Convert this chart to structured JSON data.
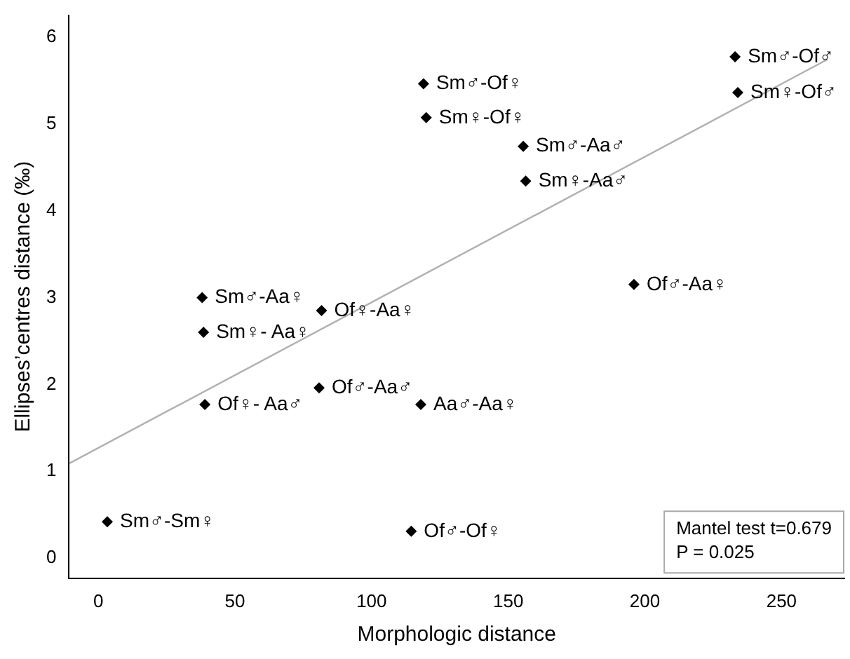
{
  "chart_data": {
    "type": "scatter",
    "xlabel": "Morphologic distance",
    "ylabel": "Ellipses’centres distance (‰)",
    "xlim": [
      -10.7,
      273
    ],
    "ylim": [
      -0.23,
      6.25
    ],
    "xticks": [
      0,
      50,
      100,
      150,
      200,
      250
    ],
    "yticks": [
      0,
      1,
      2,
      3,
      4,
      5,
      6
    ],
    "grid": false,
    "legend": false,
    "marker": "diamond",
    "series": [
      {
        "type": "scatter",
        "color": "#000000",
        "x": [
          233,
          234,
          119,
          120,
          155.5,
          156.4,
          196,
          38,
          81.7,
          38.5,
          80.8,
          39,
          118,
          3.3,
          114.5
        ],
        "values": [
          5.77,
          5.36,
          5.46,
          5.07,
          4.74,
          4.34,
          3.15,
          3.0,
          2.85,
          2.6,
          1.96,
          1.77,
          1.77,
          0.42,
          0.31
        ]
      },
      {
        "type": "line",
        "color": "#b0b0b0",
        "x": [
          -10.7,
          266.8
        ],
        "values": [
          1.09,
          5.74
        ],
        "marker": "none"
      }
    ],
    "annotations": [
      {
        "text": "Sm♂-Of♂",
        "x": 233,
        "y": 5.77
      },
      {
        "text": "Sm♀-Of♂",
        "x": 234,
        "y": 5.36
      },
      {
        "text": "Sm♂-Of♀",
        "x": 119,
        "y": 5.46
      },
      {
        "text": "Sm♀-Of♀",
        "x": 120,
        "y": 5.07
      },
      {
        "text": "Sm♂-Aa♂",
        "x": 155.5,
        "y": 4.74
      },
      {
        "text": "Sm♀-Aa♂",
        "x": 156.4,
        "y": 4.34
      },
      {
        "text": "Of♂-Aa♀",
        "x": 196,
        "y": 3.15
      },
      {
        "text": "Sm♂-Aa♀",
        "x": 38,
        "y": 3.0
      },
      {
        "text": "Of♀-Aa♀",
        "x": 81.7,
        "y": 2.85
      },
      {
        "text": "Sm♀- Aa♀",
        "x": 38.5,
        "y": 2.6
      },
      {
        "text": "Of♂-Aa♂",
        "x": 80.8,
        "y": 1.96
      },
      {
        "text": "Of♀- Aa♂",
        "x": 39,
        "y": 1.77
      },
      {
        "text": "Aa♂-Aa♀",
        "x": 118,
        "y": 1.77
      },
      {
        "text": "Sm♂-Sm♀",
        "x": 3.3,
        "y": 0.42
      },
      {
        "text": "Of♂-Of♀",
        "x": 114.5,
        "y": 0.31
      },
      "Mantel test t=0.679",
      "P = 0.025"
    ]
  }
}
